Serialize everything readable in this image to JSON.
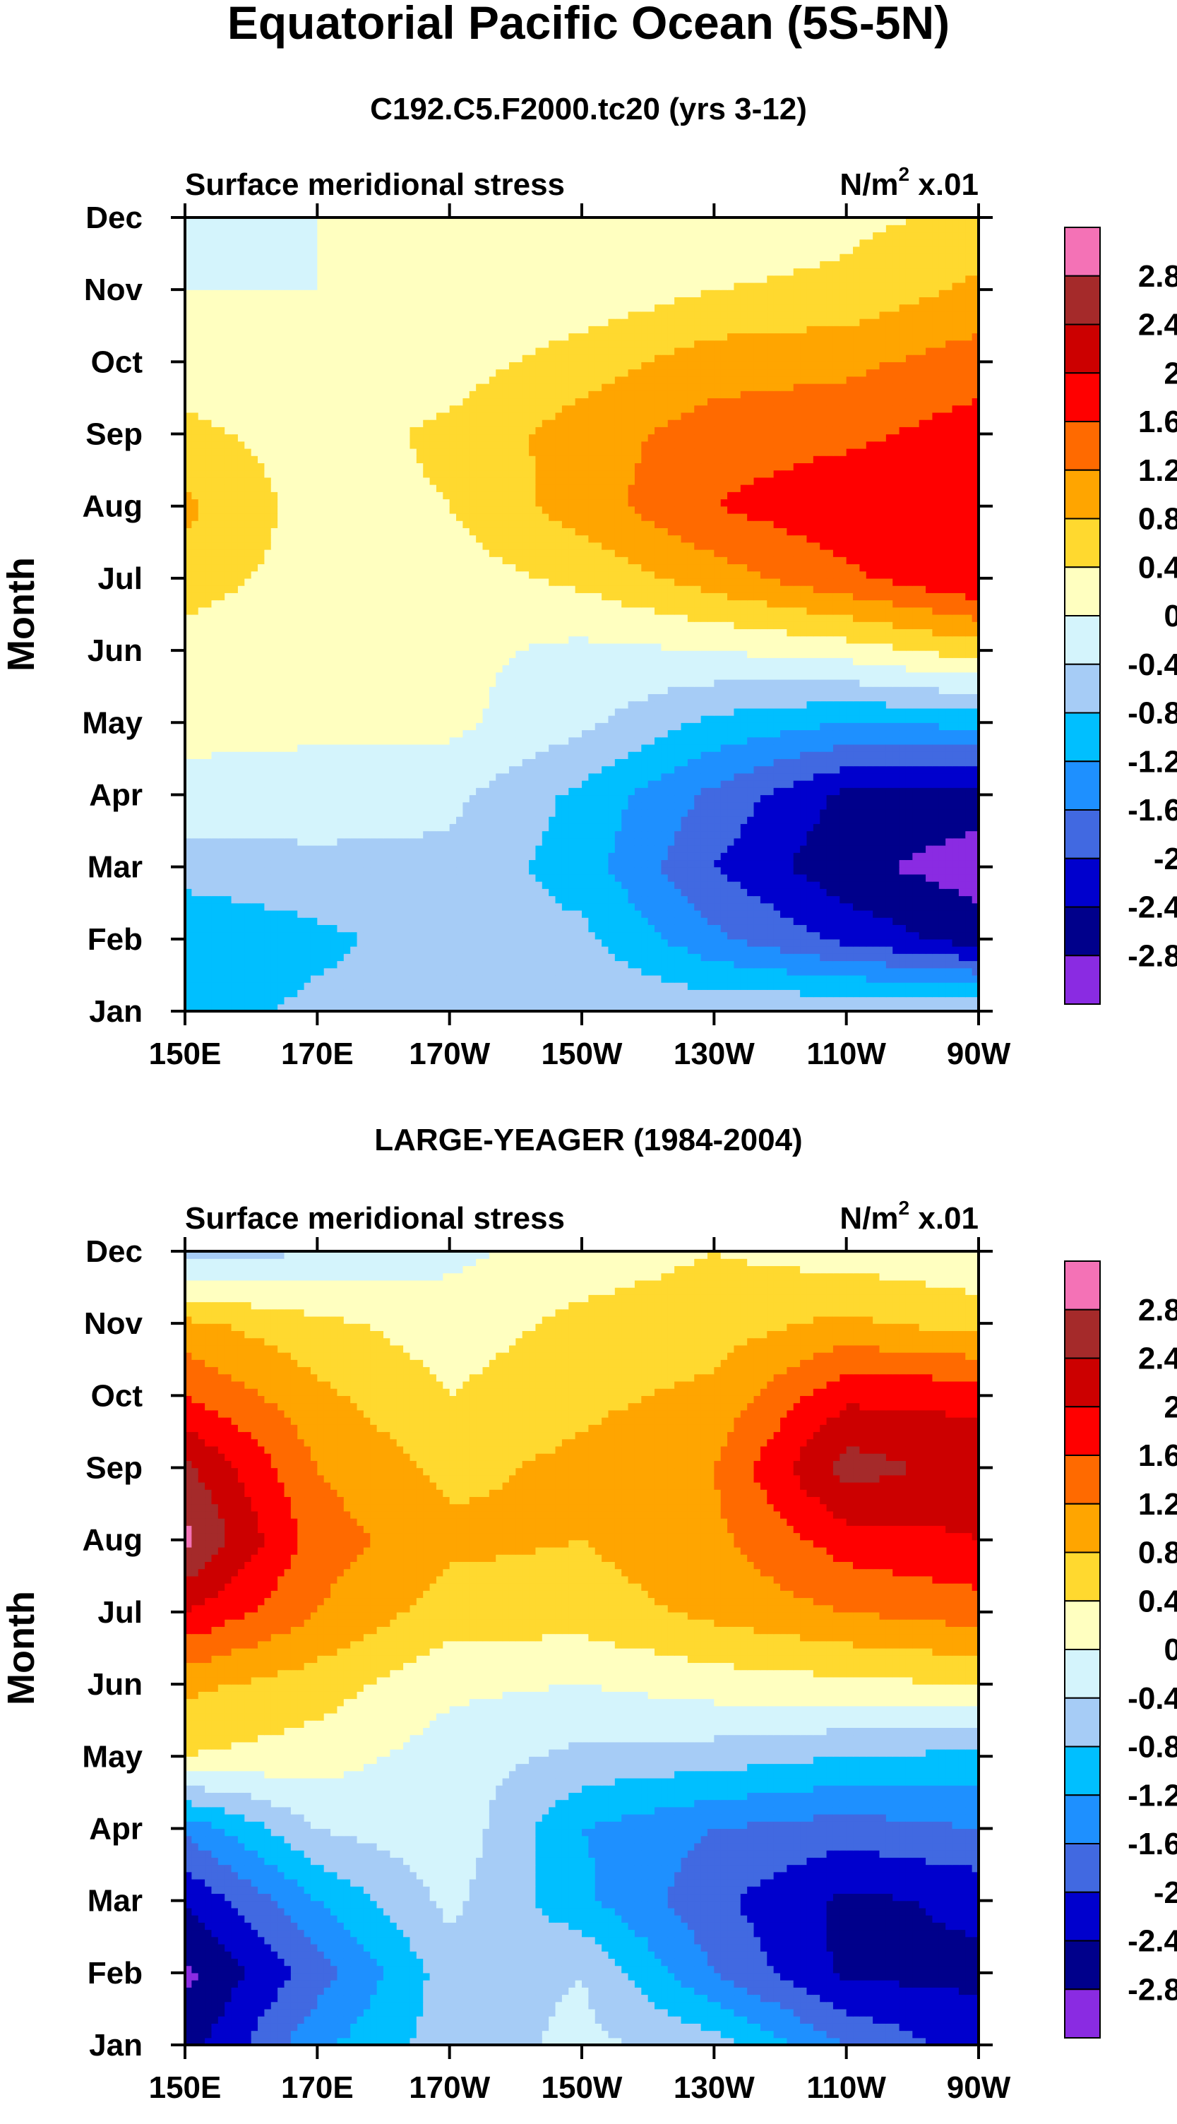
{
  "title": "Equatorial Pacific Ocean (5S-5N)",
  "colorbar": {
    "levels": [
      "2.8",
      "2.4",
      "2",
      "1.6",
      "1.2",
      "0.8",
      "0.4",
      "0",
      "-0.4",
      "-0.8",
      "-1.2",
      "-1.6",
      "-2",
      "-2.4",
      "-2.8"
    ],
    "colors": [
      "#f472b6",
      "#a52a2a",
      "#cc0000",
      "#ff0000",
      "#ff6a00",
      "#ffa500",
      "#ffd92f",
      "#ffffc0",
      "#d4f4fc",
      "#a6ccf6",
      "#00bfff",
      "#1e90ff",
      "#4169e1",
      "#0000cd",
      "#00008b",
      "#8a2be2"
    ]
  },
  "chart_data": [
    {
      "type": "heatmap",
      "title": "C192.C5.F2000.tc20 (yrs 3-12)",
      "left_label": "Surface meridional stress",
      "right_label": "N/m",
      "right_label_sup": "2",
      "right_label_suffix": " x.01",
      "ylabel": "Month",
      "x_ticks": [
        "150E",
        "170E",
        "170W",
        "150W",
        "130W",
        "110W",
        "90W"
      ],
      "x_values": [
        150,
        170,
        190,
        210,
        230,
        250,
        270
      ],
      "xlim": [
        150,
        270
      ],
      "y_ticks": [
        "Jan",
        "Feb",
        "Mar",
        "Apr",
        "May",
        "Jun",
        "Jul",
        "Aug",
        "Sep",
        "Oct",
        "Nov",
        "Dec"
      ],
      "ylim": [
        1,
        12
      ],
      "grid_x": [
        150,
        170,
        190,
        210,
        230,
        250,
        270
      ],
      "grid_y": [
        1,
        2,
        3,
        4,
        5,
        6,
        7,
        8,
        9,
        10,
        11,
        12
      ],
      "values": [
        [
          -1.0,
          -0.7,
          -0.6,
          -0.5,
          -0.5,
          -0.4,
          -0.4
        ],
        [
          -1.2,
          -0.9,
          -0.6,
          -0.7,
          -1.5,
          -2.1,
          -2.6
        ],
        [
          -0.6,
          -0.5,
          -0.5,
          -1.0,
          -2.0,
          -2.7,
          -3.0
        ],
        [
          -0.1,
          -0.2,
          -0.3,
          -0.9,
          -1.7,
          -2.5,
          -2.6
        ],
        [
          0.1,
          0.1,
          0.1,
          -0.3,
          -0.9,
          -1.2,
          -1.1
        ],
        [
          0.2,
          0.1,
          0.1,
          -0.1,
          0.0,
          0.2,
          0.6
        ],
        [
          0.6,
          0.2,
          0.2,
          0.5,
          1.0,
          1.5,
          2.0
        ],
        [
          0.9,
          0.2,
          0.4,
          1.0,
          1.6,
          1.9,
          2.0
        ],
        [
          0.5,
          0.2,
          0.5,
          1.0,
          1.4,
          1.5,
          1.8
        ],
        [
          0.2,
          0.1,
          0.2,
          0.6,
          1.0,
          1.1,
          1.4
        ],
        [
          0.0,
          0.0,
          0.1,
          0.1,
          0.4,
          0.5,
          0.9
        ],
        [
          -0.1,
          0.0,
          0.0,
          0.0,
          0.1,
          0.3,
          0.5
        ]
      ]
    },
    {
      "type": "heatmap",
      "title": "LARGE-YEAGER (1984-2004)",
      "left_label": "Surface meridional stress",
      "right_label": "N/m",
      "right_label_sup": "2",
      "right_label_suffix": " x.01",
      "ylabel": "Month",
      "x_ticks": [
        "150E",
        "170E",
        "170W",
        "150W",
        "130W",
        "110W",
        "90W"
      ],
      "x_values": [
        150,
        170,
        190,
        210,
        230,
        250,
        270
      ],
      "xlim": [
        150,
        270
      ],
      "y_ticks": [
        "Jan",
        "Feb",
        "Mar",
        "Apr",
        "May",
        "Jun",
        "Jul",
        "Aug",
        "Sep",
        "Oct",
        "Nov",
        "Dec"
      ],
      "ylim": [
        1,
        12
      ],
      "grid_x": [
        150,
        170,
        190,
        210,
        230,
        250,
        270
      ],
      "grid_y": [
        1,
        2,
        3,
        4,
        5,
        6,
        7,
        8,
        9,
        10,
        11,
        12
      ],
      "values": [
        [
          -2.6,
          -1.3,
          -0.6,
          -0.3,
          -0.6,
          -1.6,
          -2.2
        ],
        [
          -2.9,
          -1.8,
          -0.6,
          -0.4,
          -1.6,
          -2.5,
          -2.5
        ],
        [
          -2.4,
          -1.2,
          -0.3,
          -1.1,
          -1.9,
          -2.5,
          -2.3
        ],
        [
          -1.5,
          -0.4,
          -0.1,
          -1.2,
          -1.6,
          -1.8,
          -1.6
        ],
        [
          0.4,
          0.2,
          -0.2,
          -0.5,
          -0.6,
          -0.8,
          -0.9
        ],
        [
          0.9,
          0.6,
          0.1,
          0.0,
          0.2,
          0.3,
          0.4
        ],
        [
          2.0,
          1.2,
          0.6,
          0.6,
          0.9,
          1.2,
          1.4
        ],
        [
          2.9,
          1.4,
          0.9,
          0.8,
          1.1,
          1.8,
          2.0
        ],
        [
          2.5,
          1.2,
          0.7,
          0.9,
          1.2,
          2.6,
          2.2
        ],
        [
          1.6,
          0.9,
          0.4,
          0.7,
          0.9,
          1.9,
          1.9
        ],
        [
          0.9,
          0.5,
          0.2,
          0.5,
          0.6,
          0.9,
          0.6
        ],
        [
          -0.6,
          -0.4,
          -0.1,
          0.2,
          0.4,
          0.2,
          0.1
        ]
      ]
    }
  ]
}
